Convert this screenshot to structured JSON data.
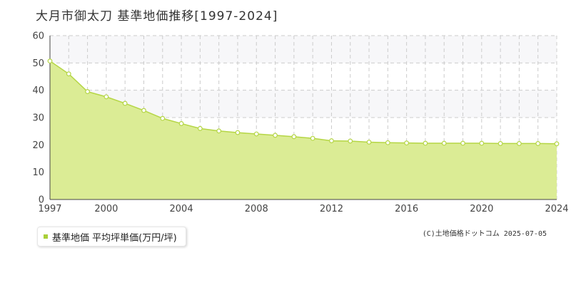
{
  "header": {
    "title": "大月市御太刀 基準地価推移[1997-2024]"
  },
  "legend": {
    "label": "基準地価 平均坪単価(万円/坪)"
  },
  "footer": {
    "copyright": "(C)土地価格ドットコム 2025-07-05"
  },
  "colors": {
    "area_fill": "#dbec95",
    "line": "#b5d645",
    "marker_fill": "#ffffff",
    "band": "#f7f7f9",
    "grid": "#cccccc"
  },
  "chart_data": {
    "type": "area",
    "title": "",
    "xlabel": "",
    "ylabel": "",
    "xlim": [
      1997,
      2024
    ],
    "ylim": [
      0,
      60
    ],
    "x_ticks": [
      1997,
      2000,
      2004,
      2008,
      2012,
      2016,
      2020,
      2024
    ],
    "y_ticks": [
      0,
      10,
      20,
      30,
      40,
      50,
      60
    ],
    "grid": true,
    "series": [
      {
        "name": "基準地価 平均坪単価(万円/坪)",
        "x": [
          1997,
          1998,
          1999,
          2000,
          2001,
          2002,
          2003,
          2004,
          2005,
          2006,
          2007,
          2008,
          2009,
          2010,
          2011,
          2012,
          2013,
          2014,
          2015,
          2016,
          2017,
          2018,
          2019,
          2020,
          2021,
          2022,
          2023,
          2024
        ],
        "values": [
          50.7,
          46.0,
          39.5,
          37.6,
          35.2,
          32.6,
          29.7,
          27.8,
          26.0,
          25.1,
          24.5,
          24.0,
          23.5,
          23.0,
          22.4,
          21.5,
          21.4,
          21.0,
          20.8,
          20.7,
          20.6,
          20.6,
          20.6,
          20.6,
          20.5,
          20.5,
          20.5,
          20.4
        ]
      }
    ]
  }
}
